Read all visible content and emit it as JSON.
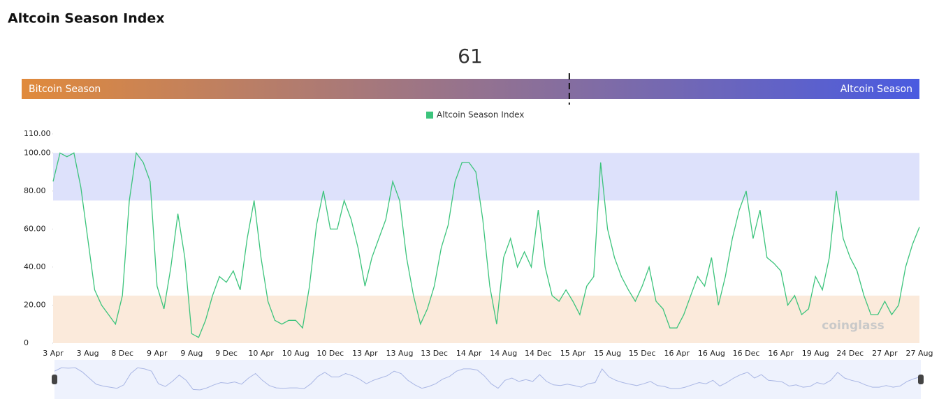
{
  "title": "Altcoin Season Index",
  "gauge": {
    "value": 61,
    "lim": [
      0,
      100
    ],
    "left_label": "Bitcoin Season",
    "right_label": "Altcoin Season",
    "colors": [
      "#e08a3c",
      "#4a5be0"
    ]
  },
  "watermark": "coinglass",
  "chart_data": {
    "type": "line",
    "categories": [
      "3 Apr",
      null,
      null,
      null,
      null,
      "3 Aug",
      null,
      null,
      null,
      null,
      "8 Dec",
      null,
      null,
      null,
      null,
      "9 Apr",
      null,
      null,
      null,
      null,
      "9 Aug",
      null,
      null,
      null,
      null,
      "9 Dec",
      null,
      null,
      null,
      null,
      "10 Apr",
      null,
      null,
      null,
      null,
      "10 Aug",
      null,
      null,
      null,
      null,
      "10 Dec",
      null,
      null,
      null,
      null,
      "13 Apr",
      null,
      null,
      null,
      null,
      "13 Aug",
      null,
      null,
      null,
      null,
      "13 Dec",
      null,
      null,
      null,
      null,
      "14 Apr",
      null,
      null,
      null,
      null,
      "14 Aug",
      null,
      null,
      null,
      null,
      "14 Dec",
      null,
      null,
      null,
      null,
      "15 Apr",
      null,
      null,
      null,
      null,
      "15 Aug",
      null,
      null,
      null,
      null,
      "15 Dec",
      null,
      null,
      null,
      null,
      "16 Apr",
      null,
      null,
      null,
      null,
      "16 Aug",
      null,
      null,
      null,
      null,
      "16 Dec",
      null,
      null,
      null,
      null,
      "16 Apr",
      null,
      null,
      null,
      null,
      "19 Aug",
      null,
      null,
      null,
      null,
      "24 Dec",
      null,
      null,
      null,
      null,
      "27 Apr",
      null,
      null,
      null,
      null,
      "27 Aug"
    ],
    "series": [
      {
        "name": "Altcoin Season Index",
        "color": "#3cc47c",
        "values": [
          85,
          100,
          98,
          100,
          82,
          55,
          28,
          20,
          15,
          10,
          25,
          75,
          100,
          95,
          85,
          30,
          18,
          40,
          68,
          45,
          5,
          3,
          12,
          25,
          35,
          32,
          38,
          28,
          55,
          75,
          45,
          22,
          12,
          10,
          12,
          12,
          8,
          30,
          62,
          80,
          60,
          60,
          75,
          65,
          50,
          30,
          45,
          55,
          65,
          85,
          75,
          45,
          25,
          10,
          18,
          30,
          50,
          62,
          85,
          95,
          95,
          90,
          65,
          30,
          10,
          45,
          55,
          40,
          48,
          40,
          70,
          40,
          25,
          22,
          28,
          22,
          15,
          30,
          35,
          95,
          60,
          45,
          35,
          28,
          22,
          30,
          40,
          22,
          18,
          8,
          8,
          15,
          25,
          35,
          30,
          45,
          20,
          35,
          55,
          70,
          80,
          55,
          70,
          45,
          42,
          38,
          20,
          25,
          15,
          18,
          35,
          28,
          45,
          80,
          55,
          45,
          38,
          25,
          15,
          15,
          22,
          15,
          20,
          40,
          52,
          61
        ]
      }
    ],
    "ylim": [
      0,
      110
    ],
    "yticks": [
      0,
      {
        "value": 20,
        "label": "20.00"
      },
      {
        "value": 40,
        "label": "40.00"
      },
      {
        "value": 60,
        "label": "60.00"
      },
      {
        "value": 80,
        "label": "80.00"
      },
      {
        "value": 100,
        "label": "100.00"
      },
      {
        "value": 110,
        "label": "110.00"
      }
    ],
    "bands": [
      {
        "from": 75,
        "to": 100,
        "color": "#dde1fb"
      },
      {
        "from": 0,
        "to": 25,
        "color": "#fbeadb"
      }
    ]
  }
}
